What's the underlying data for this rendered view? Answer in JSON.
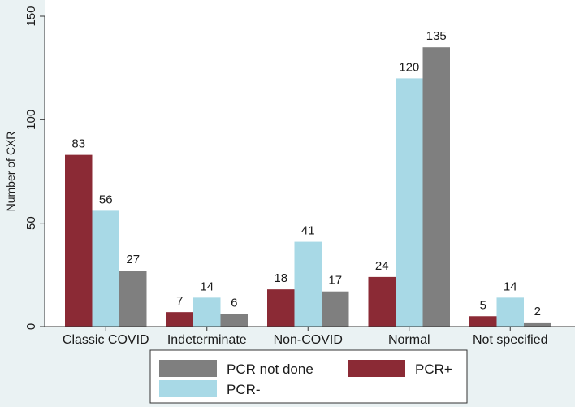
{
  "chart_data": {
    "type": "bar",
    "ylabel": "Number of CXR",
    "xlabel": "",
    "ylim": [
      0,
      150
    ],
    "yticks": [
      0,
      50,
      100,
      150
    ],
    "grid": false,
    "categories": [
      "Classic COVID",
      "Indeterminate",
      "Non-COVID",
      "Normal",
      "Not specified"
    ],
    "series": [
      {
        "name": "PCR+",
        "color": "#8b2a35",
        "values": [
          83,
          7,
          18,
          24,
          5
        ]
      },
      {
        "name": "PCR-",
        "color": "#a8d9e6",
        "values": [
          56,
          14,
          41,
          120,
          14
        ]
      },
      {
        "name": "PCR not done",
        "color": "#7f7f7f",
        "values": [
          27,
          6,
          17,
          135,
          2
        ]
      }
    ],
    "legend": {
      "placement": "bottom",
      "order": [
        "PCR not done",
        "PCR+",
        "PCR-"
      ]
    },
    "show_data_labels": true
  },
  "colors": {
    "plot_background": "#ffffff",
    "page_background": "#eaf2f3",
    "axis": "#333333"
  }
}
